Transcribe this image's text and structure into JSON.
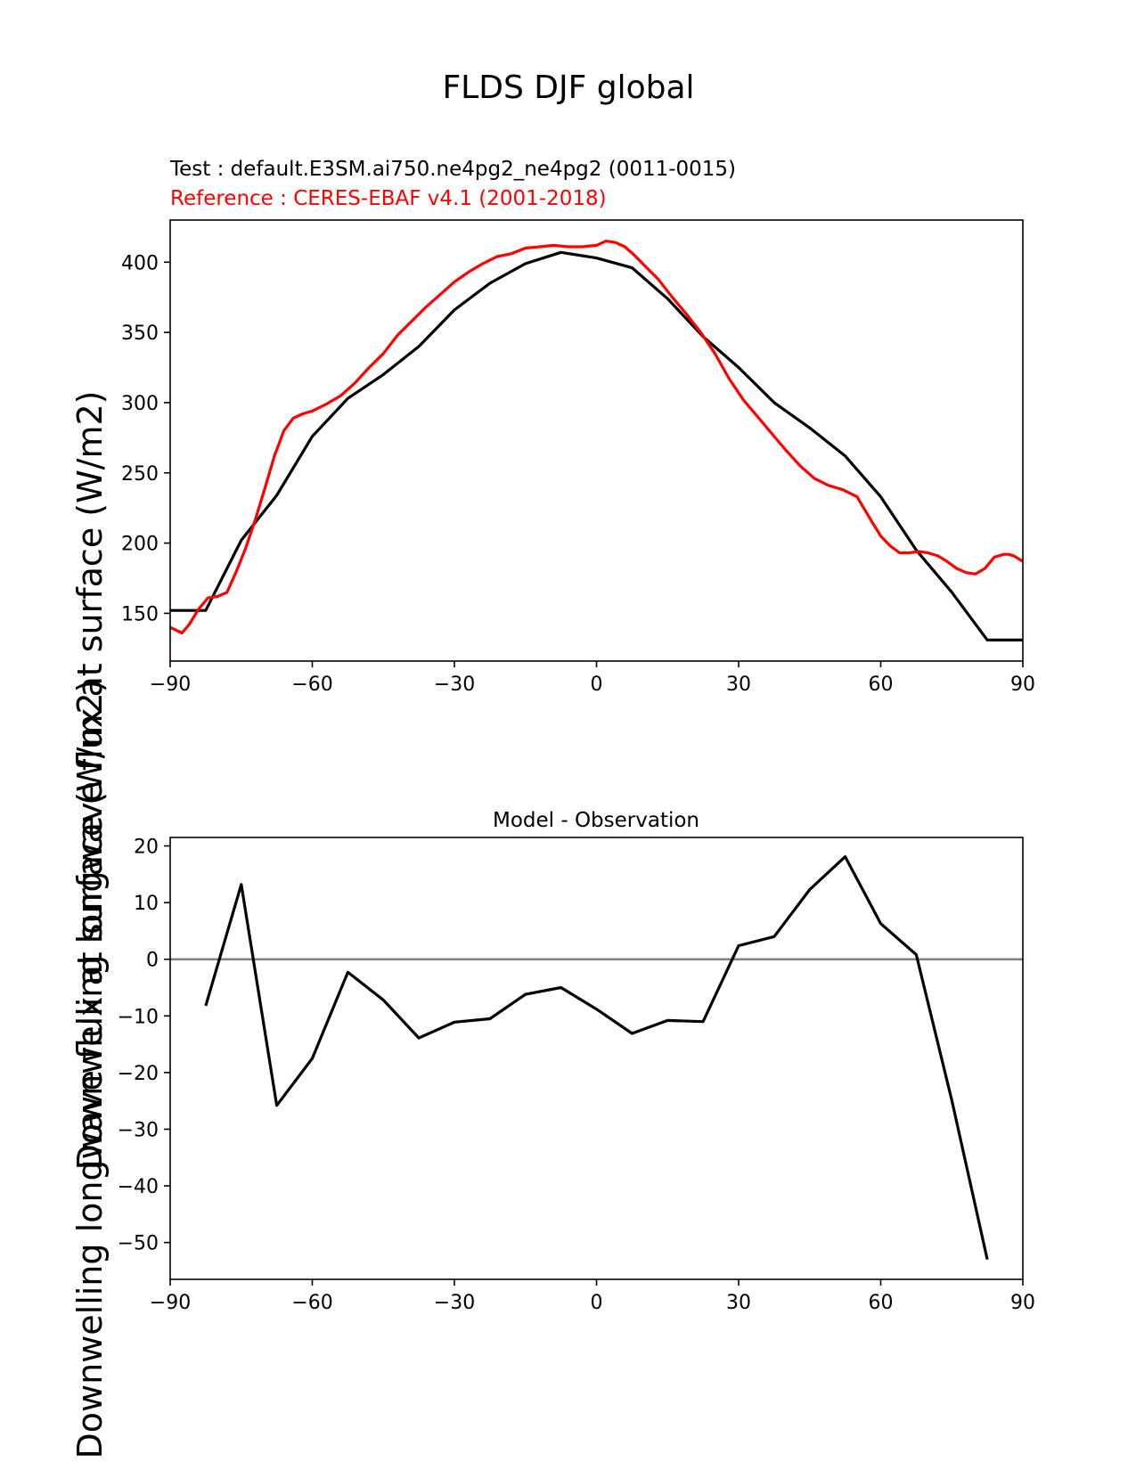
{
  "figure": {
    "suptitle": "FLDS DJF global"
  },
  "chart_data": [
    {
      "type": "line",
      "title_test": "Test : default.E3SM.ai750.ne4pg2_ne4pg2 (0011-0015)",
      "title_reference": "Reference : CERES-EBAF v4.1 (2001-2018)",
      "ylabel": "Downwelling longwave flux at surface (W/m2)",
      "xlim": [
        -90,
        90
      ],
      "ylim": [
        116,
        430
      ],
      "xticks": [
        -90,
        -60,
        -30,
        0,
        30,
        60,
        90
      ],
      "xtick_labels": [
        "−90",
        "−60",
        "−30",
        "0",
        "30",
        "60",
        "90"
      ],
      "yticks": [
        150,
        200,
        250,
        300,
        350,
        400
      ],
      "ytick_labels": [
        "150",
        "200",
        "250",
        "300",
        "350",
        "400"
      ],
      "grid": false,
      "series": [
        {
          "color": "#000000",
          "x": [
            -90,
            -82.5,
            -75,
            -67.5,
            -60,
            -52.5,
            -45,
            -37.5,
            -30,
            -22.5,
            -15,
            -7.5,
            0,
            7.5,
            15,
            22.5,
            30,
            37.5,
            45,
            52.5,
            60,
            67.5,
            75,
            82.5,
            90
          ],
          "y": [
            152,
            152,
            202,
            234,
            276,
            303,
            320,
            340,
            366,
            385,
            399,
            407,
            403,
            396,
            374,
            347,
            325,
            300,
            282,
            262,
            233,
            195,
            165,
            131,
            131
          ]
        },
        {
          "color": "#ff0000",
          "x": [
            -90,
            -87.5,
            -86,
            -84,
            -82,
            -80,
            -78,
            -76,
            -74,
            -72,
            -70,
            -68,
            -66,
            -64,
            -62,
            -60,
            -57,
            -54,
            -51,
            -48,
            -45,
            -42,
            -39,
            -36,
            -33,
            -30,
            -27,
            -24,
            -21,
            -18,
            -15,
            -12,
            -9,
            -6,
            -3,
            0,
            2,
            4,
            6,
            8,
            10,
            13,
            16,
            19,
            22,
            25,
            28,
            31,
            34,
            37,
            40,
            43,
            46,
            49,
            52,
            55,
            58,
            60,
            62,
            64,
            66,
            68,
            70,
            72,
            74,
            76,
            78,
            80,
            81,
            82,
            83,
            84,
            85,
            86,
            87,
            88,
            89,
            90
          ],
          "y": [
            140,
            136,
            142,
            153,
            161,
            162,
            165,
            180,
            197,
            217,
            239,
            262,
            280,
            289,
            292,
            294,
            299,
            305,
            314,
            325,
            335,
            348,
            358,
            368,
            377,
            386,
            393,
            399,
            404,
            406,
            410,
            411,
            412,
            411,
            411,
            412,
            415,
            414,
            411,
            405,
            398,
            388,
            375,
            363,
            350,
            335,
            317,
            302,
            290,
            278,
            266,
            255,
            246,
            241,
            238,
            233,
            216,
            205,
            198,
            193,
            193,
            194,
            193,
            191,
            187,
            182,
            179,
            178,
            180,
            182,
            186,
            190,
            191,
            192,
            192,
            191,
            189,
            187
          ]
        }
      ]
    },
    {
      "type": "line",
      "title": "Model - Observation",
      "ylabel": "Downwelling longwave flux at surface (W/m2)",
      "xlim": [
        -90,
        90
      ],
      "ylim": [
        -56.5,
        21.5
      ],
      "xticks": [
        -90,
        -60,
        -30,
        0,
        30,
        60,
        90
      ],
      "xtick_labels": [
        "−90",
        "−60",
        "−30",
        "0",
        "30",
        "60",
        "90"
      ],
      "yticks": [
        -50,
        -40,
        -30,
        -20,
        -10,
        0,
        10,
        20
      ],
      "ytick_labels": [
        "−50",
        "−40",
        "−30",
        "−20",
        "−10",
        "0",
        "10",
        "20"
      ],
      "grid": false,
      "zero_line_color": "#808080",
      "series": [
        {
          "color": "#000000",
          "x": [
            -82.5,
            -75,
            -67.5,
            -60,
            -52.5,
            -45,
            -37.5,
            -30,
            -22.5,
            -15,
            -7.5,
            0,
            7.5,
            15,
            22.5,
            30,
            37.5,
            45,
            52.5,
            60,
            67.5,
            75,
            82.5
          ],
          "y": [
            -8.2,
            13.2,
            -25.8,
            -17.5,
            -2.3,
            -7.2,
            -13.9,
            -11.1,
            -10.5,
            -6.2,
            -5.0,
            -8.8,
            -13.1,
            -10.8,
            -11.0,
            2.4,
            4.0,
            12.3,
            18.1,
            6.3,
            0.8,
            -24.9,
            -53.0
          ]
        }
      ]
    }
  ]
}
